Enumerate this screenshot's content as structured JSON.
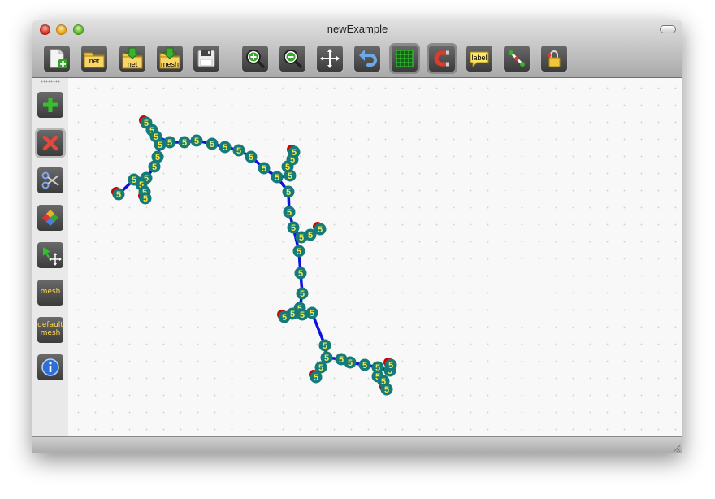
{
  "window": {
    "title": "newExample"
  },
  "toolbar": {
    "new_label": "",
    "open_net_label": "net",
    "import_net_label": "net",
    "import_mesh_label": "mesh",
    "label_button_text": "label"
  },
  "sidebar": {
    "mesh_label": "mesh",
    "default_mesh_line1": "default",
    "default_mesh_line2": "mesh"
  },
  "network": {
    "node_label": "5",
    "colors": {
      "node": "#147a7a",
      "edge": "#1010e0",
      "end": "#d40000",
      "label": "#f2e84a"
    }
  }
}
